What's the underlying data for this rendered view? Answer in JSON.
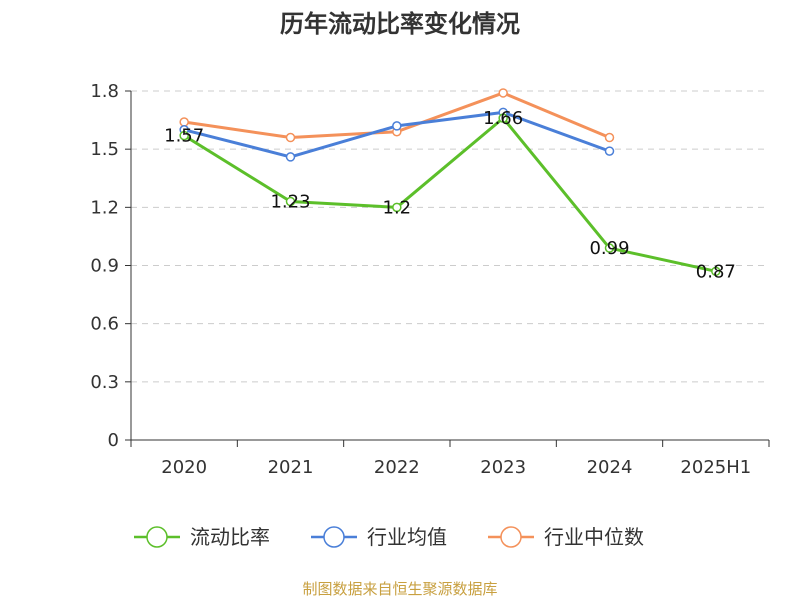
{
  "title": "历年流动比率变化情况",
  "source": "制图数据来自恒生聚源数据库",
  "colors": {
    "source_text": "#c8a040"
  },
  "chart_data": {
    "type": "line",
    "title": "历年流动比率变化情况",
    "categories": [
      "2020",
      "2021",
      "2022",
      "2023",
      "2024",
      "2025H1"
    ],
    "ylim": [
      0,
      1.8
    ],
    "yticks": [
      "0",
      "0.3",
      "0.6",
      "0.9",
      "1.2",
      "1.5",
      "1.8"
    ],
    "grid": true,
    "legend_position": "bottom",
    "series": [
      {
        "name": "流动比率",
        "color": "#5cbf2a",
        "values": [
          1.57,
          1.23,
          1.2,
          1.66,
          0.99,
          0.87
        ],
        "labels": [
          "1.57",
          "1.23",
          "1.2",
          "1.66",
          "0.99",
          "0.87"
        ]
      },
      {
        "name": "行业均值",
        "color": "#4a7fd8",
        "values": [
          1.6,
          1.46,
          1.62,
          1.69,
          1.49,
          null
        ]
      },
      {
        "name": "行业中位数",
        "color": "#f4915a",
        "values": [
          1.64,
          1.56,
          1.59,
          1.79,
          1.56,
          null
        ]
      }
    ]
  }
}
